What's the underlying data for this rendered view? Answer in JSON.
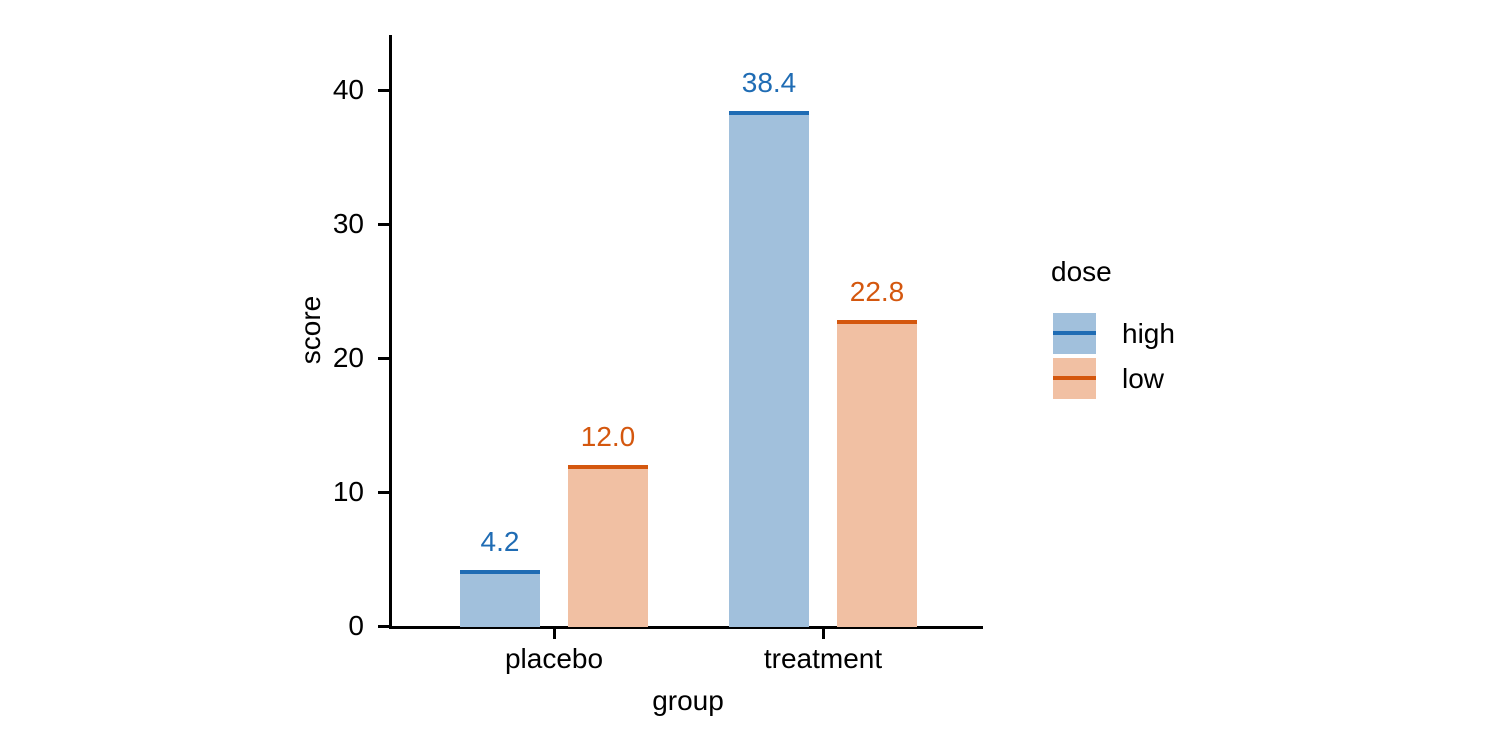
{
  "chart_data": {
    "type": "bar",
    "title": "",
    "xlabel": "group",
    "ylabel": "score",
    "categories": [
      "placebo",
      "treatment"
    ],
    "series": [
      {
        "name": "high",
        "values": [
          4.2,
          38.4
        ],
        "fill_color": "#a1c0dc",
        "edge_color": "#1f6cb4"
      },
      {
        "name": "low",
        "values": [
          12.0,
          22.8
        ],
        "fill_color": "#f1c0a3",
        "edge_color": "#d4570e"
      }
    ],
    "value_label_decimals": 1,
    "y_ticks": [
      0,
      10,
      20,
      30,
      40
    ],
    "ylim": [
      0,
      44
    ],
    "grid": false,
    "legend": {
      "title": "dose",
      "position": "right",
      "entries": [
        "high",
        "low"
      ]
    },
    "axis_color": "#000000",
    "text_color": "#000000"
  }
}
